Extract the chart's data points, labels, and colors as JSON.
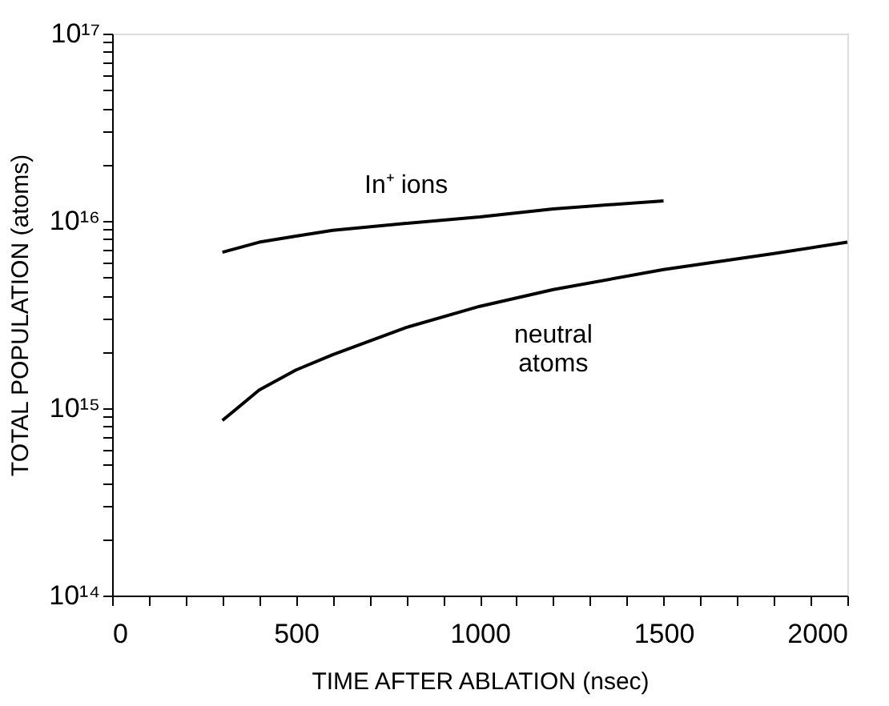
{
  "chart_data": {
    "type": "line",
    "xlabel": "TIME AFTER ABLATION (nsec)",
    "ylabel": "TOTAL POPULATION (atoms)",
    "log": "y",
    "grid": false,
    "legend": false,
    "marker": "none",
    "line_style": "solid",
    "xlim": [
      0,
      2000
    ],
    "ylim": [
      100000000000000.0,
      1e+17
    ],
    "xticks": [
      0,
      {
        "value": 100,
        "label": null
      },
      {
        "value": 200,
        "label": null
      },
      {
        "value": 300,
        "label": null
      },
      {
        "value": 400,
        "label": null
      },
      500,
      {
        "value": 600,
        "label": null
      },
      {
        "value": 700,
        "label": null
      },
      {
        "value": 800,
        "label": null
      },
      {
        "value": 900,
        "label": null
      },
      1000,
      {
        "value": 1100,
        "label": null
      },
      {
        "value": 1200,
        "label": null
      },
      {
        "value": 1300,
        "label": null
      },
      {
        "value": 1400,
        "label": null
      },
      1500,
      {
        "value": 1600,
        "label": null
      },
      {
        "value": 1700,
        "label": null
      },
      {
        "value": 1800,
        "label": null
      },
      {
        "value": 1900,
        "label": null
      },
      2000
    ],
    "yticks": [
      {
        "value": 100000000000000.0,
        "label": "10¹⁴"
      },
      {
        "value": 200000000000000.0,
        "label": null
      },
      {
        "value": 300000000000000.0,
        "label": null
      },
      {
        "value": 400000000000000.0,
        "label": null
      },
      {
        "value": 500000000000000.0,
        "label": null
      },
      {
        "value": 600000000000000.0,
        "label": null
      },
      {
        "value": 700000000000000.0,
        "label": null
      },
      {
        "value": 800000000000000.0,
        "label": null
      },
      {
        "value": 900000000000000.0,
        "label": null
      },
      {
        "value": 1000000000000000.0,
        "label": "10¹⁵"
      },
      {
        "value": 2000000000000000.0,
        "label": null
      },
      {
        "value": 3000000000000000.0,
        "label": null
      },
      {
        "value": 4000000000000000.0,
        "label": null
      },
      {
        "value": 5000000000000000.0,
        "label": null
      },
      {
        "value": 6000000000000000.0,
        "label": null
      },
      {
        "value": 7000000000000000.0,
        "label": null
      },
      {
        "value": 8000000000000000.0,
        "label": null
      },
      {
        "value": 9000000000000000.0,
        "label": null
      },
      {
        "value": 1e+16,
        "label": "10¹⁶"
      },
      {
        "value": 2e+16,
        "label": null
      },
      {
        "value": 3e+16,
        "label": null
      },
      {
        "value": 4e+16,
        "label": null
      },
      {
        "value": 5e+16,
        "label": null
      },
      {
        "value": 6e+16,
        "label": null
      },
      {
        "value": 7e+16,
        "label": null
      },
      {
        "value": 8e+16,
        "label": null
      },
      {
        "value": 9e+16,
        "label": null
      },
      {
        "value": 1e+17,
        "label": "10¹⁷"
      }
    ],
    "series": [
      {
        "name": "In⁺ ions",
        "color": "#000000",
        "x": [
          300,
          400,
          500,
          600,
          800,
          1000,
          1200,
          1500
        ],
        "values": [
          6800000000000000.0,
          7700000000000000.0,
          8300000000000000.0,
          8900000000000000.0,
          9700000000000000.0,
          1.05e+16,
          1.16e+16,
          1.28e+16
        ]
      },
      {
        "name": "neutral atoms",
        "color": "#000000",
        "x": [
          300,
          400,
          500,
          600,
          800,
          1000,
          1200,
          1500,
          1800,
          2000
        ],
        "values": [
          860000000000000.0,
          1250000000000000.0,
          1600000000000000.0,
          1930000000000000.0,
          2700000000000000.0,
          3500000000000000.0,
          4300000000000000.0,
          5500000000000000.0,
          6700000000000000.0,
          7700000000000000.0
        ]
      }
    ]
  }
}
